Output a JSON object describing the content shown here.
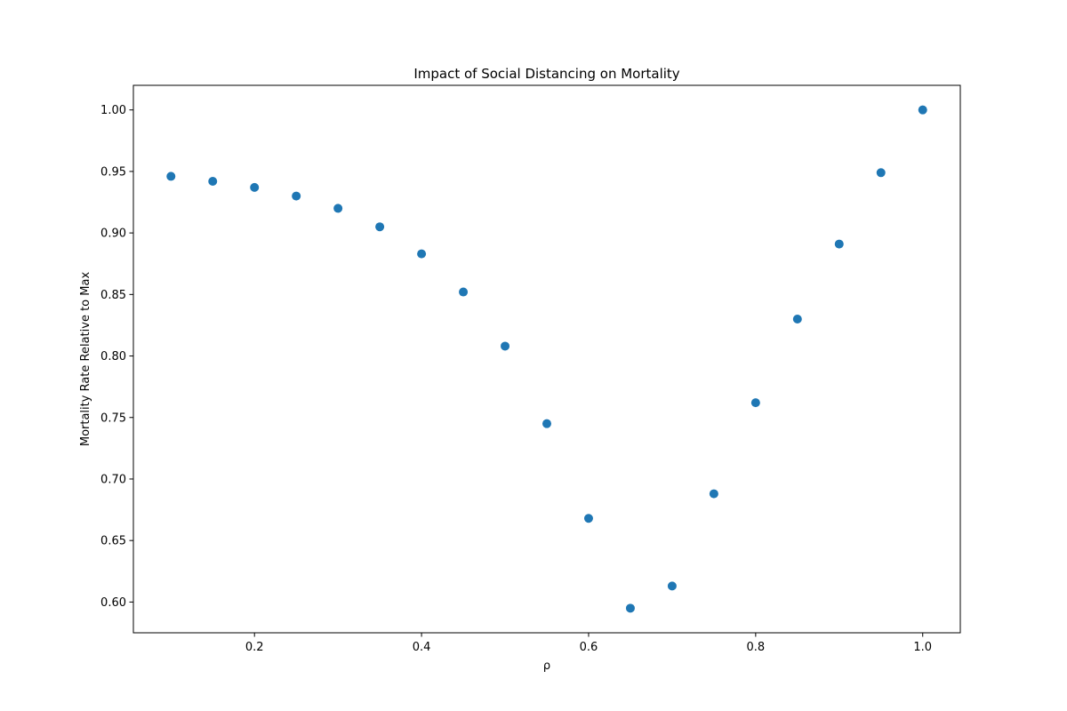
{
  "chart_data": {
    "type": "scatter",
    "title": "Impact of Social Distancing on Mortality",
    "xlabel": "ρ",
    "ylabel": "Mortality Rate Relative to Max",
    "xlim": [
      0.055,
      1.045
    ],
    "ylim": [
      0.575,
      1.02
    ],
    "xticks": [
      0.2,
      0.4,
      0.6,
      0.8,
      1.0
    ],
    "xtick_labels": [
      "0.2",
      "0.4",
      "0.6",
      "0.8",
      "1.0"
    ],
    "yticks": [
      0.6,
      0.65,
      0.7,
      0.75,
      0.8,
      0.85,
      0.9,
      0.95,
      1.0
    ],
    "ytick_labels": [
      "0.60",
      "0.65",
      "0.70",
      "0.75",
      "0.80",
      "0.85",
      "0.90",
      "0.95",
      "1.00"
    ],
    "grid": false,
    "series": [
      {
        "color": "#1f77b4",
        "x": [
          0.1,
          0.15,
          0.2,
          0.25,
          0.3,
          0.35,
          0.4,
          0.45,
          0.5,
          0.55,
          0.6,
          0.65,
          0.7,
          0.75,
          0.8,
          0.85,
          0.9,
          0.95,
          1.0
        ],
        "y": [
          0.946,
          0.942,
          0.937,
          0.93,
          0.92,
          0.905,
          0.883,
          0.852,
          0.808,
          0.745,
          0.668,
          0.595,
          0.613,
          0.688,
          0.762,
          0.83,
          0.891,
          0.949,
          1.0
        ]
      }
    ]
  }
}
